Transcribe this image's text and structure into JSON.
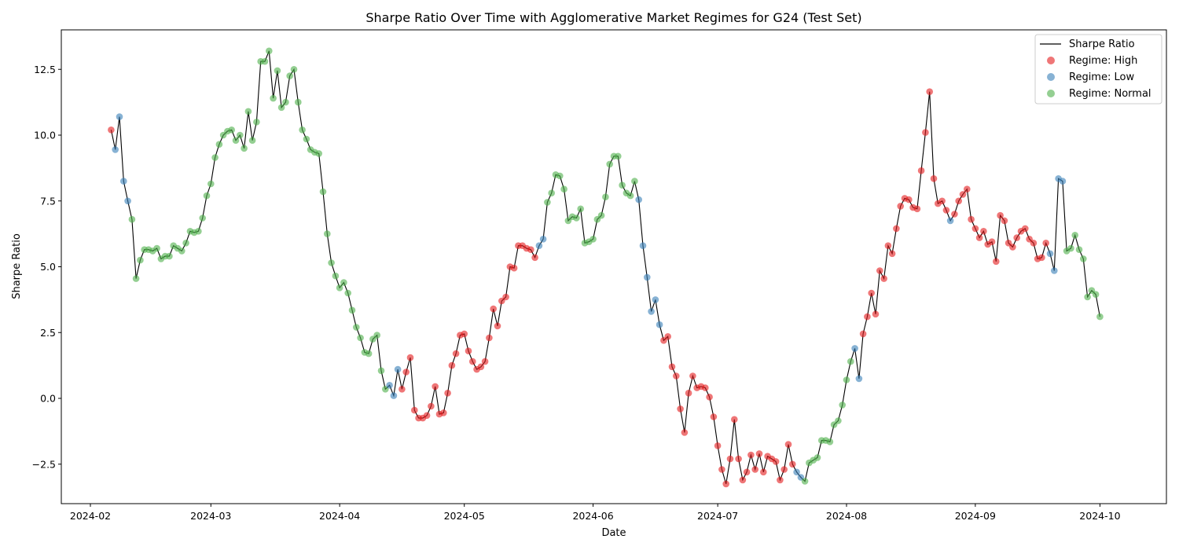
{
  "chart_data": {
    "type": "line",
    "title": "Sharpe Ratio Over Time with Agglomerative Market Regimes for G24 (Test Set)",
    "xlabel": "Date",
    "ylabel": "Sharpe Ratio",
    "grid": false,
    "legend_position": "top-right",
    "xlim": [
      "2024-01-25",
      "2024-10-17"
    ],
    "ylim": [
      -4.0,
      14.0
    ],
    "x_ticks": [
      "2024-02-01",
      "2024-03-01",
      "2024-04-01",
      "2024-05-01",
      "2024-06-01",
      "2024-07-01",
      "2024-08-01",
      "2024-09-01",
      "2024-10-01"
    ],
    "x_tick_labels": [
      "2024-02",
      "2024-03",
      "2024-04",
      "2024-05",
      "2024-06",
      "2024-07",
      "2024-08",
      "2024-09",
      "2024-10"
    ],
    "y_ticks": [
      -2.5,
      0.0,
      2.5,
      5.0,
      7.5,
      10.0,
      12.5
    ],
    "y_tick_labels": [
      "−2.5",
      "0.0",
      "2.5",
      "5.0",
      "7.5",
      "10.0",
      "12.5"
    ],
    "series": [
      {
        "name": "Sharpe Ratio",
        "kind": "line",
        "color": "#000000"
      },
      {
        "name": "Regime: High",
        "kind": "scatter",
        "color": "#e41a1c"
      },
      {
        "name": "Regime: Low",
        "kind": "scatter",
        "color": "#377eb8"
      },
      {
        "name": "Regime: Normal",
        "kind": "scatter",
        "color": "#4daf4a"
      }
    ],
    "points": [
      [
        "2024-02-06",
        10.2,
        "High"
      ],
      [
        "2024-02-07",
        9.45,
        "Low"
      ],
      [
        "2024-02-08",
        10.7,
        "Low"
      ],
      [
        "2024-02-09",
        8.25,
        "Low"
      ],
      [
        "2024-02-10",
        7.5,
        "Low"
      ],
      [
        "2024-02-11",
        6.8,
        "Normal"
      ],
      [
        "2024-02-12",
        4.55,
        "Normal"
      ],
      [
        "2024-02-13",
        5.25,
        "Normal"
      ],
      [
        "2024-02-14",
        5.65,
        "Normal"
      ],
      [
        "2024-02-15",
        5.65,
        "Normal"
      ],
      [
        "2024-02-16",
        5.6,
        "Normal"
      ],
      [
        "2024-02-17",
        5.7,
        "Normal"
      ],
      [
        "2024-02-18",
        5.3,
        "Normal"
      ],
      [
        "2024-02-19",
        5.4,
        "Normal"
      ],
      [
        "2024-02-20",
        5.4,
        "Normal"
      ],
      [
        "2024-02-21",
        5.8,
        "Normal"
      ],
      [
        "2024-02-22",
        5.7,
        "Normal"
      ],
      [
        "2024-02-23",
        5.6,
        "Normal"
      ],
      [
        "2024-02-24",
        5.9,
        "Normal"
      ],
      [
        "2024-02-25",
        6.35,
        "Normal"
      ],
      [
        "2024-02-26",
        6.3,
        "Normal"
      ],
      [
        "2024-02-27",
        6.35,
        "Normal"
      ],
      [
        "2024-02-28",
        6.85,
        "Normal"
      ],
      [
        "2024-02-29",
        7.7,
        "Normal"
      ],
      [
        "2024-03-01",
        8.15,
        "Normal"
      ],
      [
        "2024-03-02",
        9.15,
        "Normal"
      ],
      [
        "2024-03-03",
        9.65,
        "Normal"
      ],
      [
        "2024-03-04",
        10.0,
        "Normal"
      ],
      [
        "2024-03-05",
        10.15,
        "Normal"
      ],
      [
        "2024-03-06",
        10.2,
        "Normal"
      ],
      [
        "2024-03-07",
        9.8,
        "Normal"
      ],
      [
        "2024-03-08",
        10.0,
        "Normal"
      ],
      [
        "2024-03-09",
        9.5,
        "Normal"
      ],
      [
        "2024-03-10",
        10.9,
        "Normal"
      ],
      [
        "2024-03-11",
        9.8,
        "Normal"
      ],
      [
        "2024-03-12",
        10.5,
        "Normal"
      ],
      [
        "2024-03-13",
        12.8,
        "Normal"
      ],
      [
        "2024-03-14",
        12.8,
        "Normal"
      ],
      [
        "2024-03-15",
        13.2,
        "Normal"
      ],
      [
        "2024-03-16",
        11.4,
        "Normal"
      ],
      [
        "2024-03-17",
        12.45,
        "Normal"
      ],
      [
        "2024-03-18",
        11.05,
        "Normal"
      ],
      [
        "2024-03-19",
        11.25,
        "Normal"
      ],
      [
        "2024-03-20",
        12.25,
        "Normal"
      ],
      [
        "2024-03-21",
        12.5,
        "Normal"
      ],
      [
        "2024-03-22",
        11.25,
        "Normal"
      ],
      [
        "2024-03-23",
        10.2,
        "Normal"
      ],
      [
        "2024-03-24",
        9.85,
        "Normal"
      ],
      [
        "2024-03-25",
        9.45,
        "Normal"
      ],
      [
        "2024-03-26",
        9.35,
        "Normal"
      ],
      [
        "2024-03-27",
        9.3,
        "Normal"
      ],
      [
        "2024-03-28",
        7.85,
        "Normal"
      ],
      [
        "2024-03-29",
        6.25,
        "Normal"
      ],
      [
        "2024-03-30",
        5.15,
        "Normal"
      ],
      [
        "2024-03-31",
        4.65,
        "Normal"
      ],
      [
        "2024-04-01",
        4.2,
        "Normal"
      ],
      [
        "2024-04-02",
        4.4,
        "Normal"
      ],
      [
        "2024-04-03",
        4.0,
        "Normal"
      ],
      [
        "2024-04-04",
        3.35,
        "Normal"
      ],
      [
        "2024-04-05",
        2.7,
        "Normal"
      ],
      [
        "2024-04-06",
        2.3,
        "Normal"
      ],
      [
        "2024-04-07",
        1.75,
        "Normal"
      ],
      [
        "2024-04-08",
        1.7,
        "Normal"
      ],
      [
        "2024-04-09",
        2.25,
        "Normal"
      ],
      [
        "2024-04-10",
        2.4,
        "Normal"
      ],
      [
        "2024-04-11",
        1.05,
        "Normal"
      ],
      [
        "2024-04-12",
        0.35,
        "Normal"
      ],
      [
        "2024-04-13",
        0.5,
        "Low"
      ],
      [
        "2024-04-14",
        0.1,
        "Low"
      ],
      [
        "2024-04-15",
        1.1,
        "Low"
      ],
      [
        "2024-04-16",
        0.35,
        "High"
      ],
      [
        "2024-04-17",
        1.0,
        "High"
      ],
      [
        "2024-04-18",
        1.55,
        "High"
      ],
      [
        "2024-04-19",
        -0.45,
        "High"
      ],
      [
        "2024-04-20",
        -0.75,
        "High"
      ],
      [
        "2024-04-21",
        -0.75,
        "High"
      ],
      [
        "2024-04-22",
        -0.65,
        "High"
      ],
      [
        "2024-04-23",
        -0.3,
        "High"
      ],
      [
        "2024-04-24",
        0.45,
        "High"
      ],
      [
        "2024-04-25",
        -0.6,
        "High"
      ],
      [
        "2024-04-26",
        -0.55,
        "High"
      ],
      [
        "2024-04-27",
        0.2,
        "High"
      ],
      [
        "2024-04-28",
        1.25,
        "High"
      ],
      [
        "2024-04-29",
        1.7,
        "High"
      ],
      [
        "2024-04-30",
        2.4,
        "High"
      ],
      [
        "2024-05-01",
        2.45,
        "High"
      ],
      [
        "2024-05-02",
        1.8,
        "High"
      ],
      [
        "2024-05-03",
        1.4,
        "High"
      ],
      [
        "2024-05-04",
        1.1,
        "High"
      ],
      [
        "2024-05-05",
        1.2,
        "High"
      ],
      [
        "2024-05-06",
        1.4,
        "High"
      ],
      [
        "2024-05-07",
        2.3,
        "High"
      ],
      [
        "2024-05-08",
        3.4,
        "High"
      ],
      [
        "2024-05-09",
        2.75,
        "High"
      ],
      [
        "2024-05-10",
        3.7,
        "High"
      ],
      [
        "2024-05-11",
        3.85,
        "High"
      ],
      [
        "2024-05-12",
        5.0,
        "High"
      ],
      [
        "2024-05-13",
        4.95,
        "High"
      ],
      [
        "2024-05-14",
        5.8,
        "High"
      ],
      [
        "2024-05-15",
        5.8,
        "High"
      ],
      [
        "2024-05-16",
        5.7,
        "High"
      ],
      [
        "2024-05-17",
        5.65,
        "High"
      ],
      [
        "2024-05-18",
        5.35,
        "High"
      ],
      [
        "2024-05-19",
        5.8,
        "Low"
      ],
      [
        "2024-05-20",
        6.05,
        "Low"
      ],
      [
        "2024-05-21",
        7.45,
        "Normal"
      ],
      [
        "2024-05-22",
        7.8,
        "Normal"
      ],
      [
        "2024-05-23",
        8.5,
        "Normal"
      ],
      [
        "2024-05-24",
        8.45,
        "Normal"
      ],
      [
        "2024-05-25",
        7.95,
        "Normal"
      ],
      [
        "2024-05-26",
        6.75,
        "Normal"
      ],
      [
        "2024-05-27",
        6.9,
        "Normal"
      ],
      [
        "2024-05-28",
        6.85,
        "Normal"
      ],
      [
        "2024-05-29",
        7.2,
        "Normal"
      ],
      [
        "2024-05-30",
        5.9,
        "Normal"
      ],
      [
        "2024-05-31",
        5.95,
        "Normal"
      ],
      [
        "2024-06-01",
        6.05,
        "Normal"
      ],
      [
        "2024-06-02",
        6.8,
        "Normal"
      ],
      [
        "2024-06-03",
        6.95,
        "Normal"
      ],
      [
        "2024-06-04",
        7.65,
        "Normal"
      ],
      [
        "2024-06-05",
        8.9,
        "Normal"
      ],
      [
        "2024-06-06",
        9.2,
        "Normal"
      ],
      [
        "2024-06-07",
        9.2,
        "Normal"
      ],
      [
        "2024-06-08",
        8.1,
        "Normal"
      ],
      [
        "2024-06-09",
        7.8,
        "Normal"
      ],
      [
        "2024-06-10",
        7.7,
        "Normal"
      ],
      [
        "2024-06-11",
        8.25,
        "Normal"
      ],
      [
        "2024-06-12",
        7.55,
        "Low"
      ],
      [
        "2024-06-13",
        5.8,
        "Low"
      ],
      [
        "2024-06-14",
        4.6,
        "Low"
      ],
      [
        "2024-06-15",
        3.3,
        "Low"
      ],
      [
        "2024-06-16",
        3.75,
        "Low"
      ],
      [
        "2024-06-17",
        2.8,
        "Low"
      ],
      [
        "2024-06-18",
        2.2,
        "High"
      ],
      [
        "2024-06-19",
        2.35,
        "High"
      ],
      [
        "2024-06-20",
        1.2,
        "High"
      ],
      [
        "2024-06-21",
        0.85,
        "High"
      ],
      [
        "2024-06-22",
        -0.4,
        "High"
      ],
      [
        "2024-06-23",
        -1.3,
        "High"
      ],
      [
        "2024-06-24",
        0.2,
        "High"
      ],
      [
        "2024-06-25",
        0.85,
        "High"
      ],
      [
        "2024-06-26",
        0.4,
        "High"
      ],
      [
        "2024-06-27",
        0.45,
        "High"
      ],
      [
        "2024-06-28",
        0.4,
        "High"
      ],
      [
        "2024-06-29",
        0.05,
        "High"
      ],
      [
        "2024-06-30",
        -0.7,
        "High"
      ],
      [
        "2024-07-01",
        -1.8,
        "High"
      ],
      [
        "2024-07-02",
        -2.7,
        "High"
      ],
      [
        "2024-07-03",
        -3.25,
        "High"
      ],
      [
        "2024-07-04",
        -2.3,
        "High"
      ],
      [
        "2024-07-05",
        -0.8,
        "High"
      ],
      [
        "2024-07-06",
        -2.3,
        "High"
      ],
      [
        "2024-07-07",
        -3.1,
        "High"
      ],
      [
        "2024-07-08",
        -2.8,
        "High"
      ],
      [
        "2024-07-09",
        -2.15,
        "High"
      ],
      [
        "2024-07-10",
        -2.7,
        "High"
      ],
      [
        "2024-07-11",
        -2.1,
        "High"
      ],
      [
        "2024-07-12",
        -2.8,
        "High"
      ],
      [
        "2024-07-13",
        -2.2,
        "High"
      ],
      [
        "2024-07-14",
        -2.3,
        "High"
      ],
      [
        "2024-07-15",
        -2.4,
        "High"
      ],
      [
        "2024-07-16",
        -3.1,
        "High"
      ],
      [
        "2024-07-17",
        -2.7,
        "High"
      ],
      [
        "2024-07-18",
        -1.75,
        "High"
      ],
      [
        "2024-07-19",
        -2.5,
        "High"
      ],
      [
        "2024-07-20",
        -2.8,
        "Low"
      ],
      [
        "2024-07-21",
        -3.0,
        "Low"
      ],
      [
        "2024-07-22",
        -3.15,
        "Normal"
      ],
      [
        "2024-07-23",
        -2.45,
        "Normal"
      ],
      [
        "2024-07-24",
        -2.35,
        "Normal"
      ],
      [
        "2024-07-25",
        -2.25,
        "Normal"
      ],
      [
        "2024-07-26",
        -1.6,
        "Normal"
      ],
      [
        "2024-07-27",
        -1.6,
        "Normal"
      ],
      [
        "2024-07-28",
        -1.65,
        "Normal"
      ],
      [
        "2024-07-29",
        -1.0,
        "Normal"
      ],
      [
        "2024-07-30",
        -0.85,
        "Normal"
      ],
      [
        "2024-07-31",
        -0.25,
        "Normal"
      ],
      [
        "2024-08-01",
        0.7,
        "Normal"
      ],
      [
        "2024-08-02",
        1.4,
        "Normal"
      ],
      [
        "2024-08-03",
        1.9,
        "Low"
      ],
      [
        "2024-08-04",
        0.75,
        "Low"
      ],
      [
        "2024-08-05",
        2.45,
        "High"
      ],
      [
        "2024-08-06",
        3.1,
        "High"
      ],
      [
        "2024-08-07",
        4.0,
        "High"
      ],
      [
        "2024-08-08",
        3.2,
        "High"
      ],
      [
        "2024-08-09",
        4.85,
        "High"
      ],
      [
        "2024-08-10",
        4.55,
        "High"
      ],
      [
        "2024-08-11",
        5.8,
        "High"
      ],
      [
        "2024-08-12",
        5.5,
        "High"
      ],
      [
        "2024-08-13",
        6.45,
        "High"
      ],
      [
        "2024-08-14",
        7.3,
        "High"
      ],
      [
        "2024-08-15",
        7.6,
        "High"
      ],
      [
        "2024-08-16",
        7.55,
        "High"
      ],
      [
        "2024-08-17",
        7.25,
        "High"
      ],
      [
        "2024-08-18",
        7.2,
        "High"
      ],
      [
        "2024-08-19",
        8.65,
        "High"
      ],
      [
        "2024-08-20",
        10.1,
        "High"
      ],
      [
        "2024-08-21",
        11.65,
        "High"
      ],
      [
        "2024-08-22",
        8.35,
        "High"
      ],
      [
        "2024-08-23",
        7.4,
        "High"
      ],
      [
        "2024-08-24",
        7.5,
        "High"
      ],
      [
        "2024-08-25",
        7.15,
        "High"
      ],
      [
        "2024-08-26",
        6.75,
        "Low"
      ],
      [
        "2024-08-27",
        7.0,
        "High"
      ],
      [
        "2024-08-28",
        7.5,
        "High"
      ],
      [
        "2024-08-29",
        7.75,
        "High"
      ],
      [
        "2024-08-30",
        7.95,
        "High"
      ],
      [
        "2024-08-31",
        6.8,
        "High"
      ],
      [
        "2024-09-01",
        6.45,
        "High"
      ],
      [
        "2024-09-02",
        6.1,
        "High"
      ],
      [
        "2024-09-03",
        6.35,
        "High"
      ],
      [
        "2024-09-04",
        5.85,
        "High"
      ],
      [
        "2024-09-05",
        5.95,
        "High"
      ],
      [
        "2024-09-06",
        5.2,
        "High"
      ],
      [
        "2024-09-07",
        6.95,
        "High"
      ],
      [
        "2024-09-08",
        6.75,
        "High"
      ],
      [
        "2024-09-09",
        5.9,
        "High"
      ],
      [
        "2024-09-10",
        5.75,
        "High"
      ],
      [
        "2024-09-11",
        6.1,
        "High"
      ],
      [
        "2024-09-12",
        6.35,
        "High"
      ],
      [
        "2024-09-13",
        6.45,
        "High"
      ],
      [
        "2024-09-14",
        6.05,
        "High"
      ],
      [
        "2024-09-15",
        5.9,
        "High"
      ],
      [
        "2024-09-16",
        5.3,
        "High"
      ],
      [
        "2024-09-17",
        5.35,
        "High"
      ],
      [
        "2024-09-18",
        5.9,
        "High"
      ],
      [
        "2024-09-19",
        5.5,
        "Low"
      ],
      [
        "2024-09-20",
        4.85,
        "Low"
      ],
      [
        "2024-09-21",
        8.35,
        "Low"
      ],
      [
        "2024-09-22",
        8.25,
        "Low"
      ],
      [
        "2024-09-23",
        5.6,
        "Normal"
      ],
      [
        "2024-09-24",
        5.7,
        "Normal"
      ],
      [
        "2024-09-25",
        6.2,
        "Normal"
      ],
      [
        "2024-09-26",
        5.65,
        "Normal"
      ],
      [
        "2024-09-27",
        5.3,
        "Normal"
      ],
      [
        "2024-09-28",
        3.85,
        "Normal"
      ],
      [
        "2024-09-29",
        4.1,
        "Normal"
      ],
      [
        "2024-09-30",
        3.95,
        "Normal"
      ],
      [
        "2024-10-01",
        3.1,
        "Normal"
      ]
    ]
  }
}
